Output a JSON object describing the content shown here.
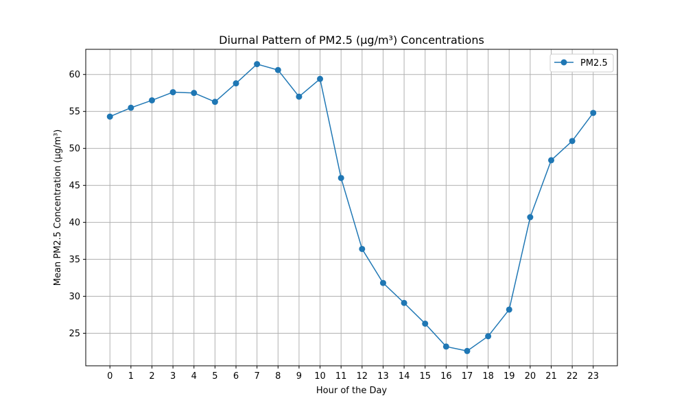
{
  "chart_data": {
    "type": "line",
    "title": "Diurnal Pattern of PM2.5 (µg/m³) Concentrations",
    "xlabel": "Hour of the Day",
    "ylabel": "Mean PM2.5 Concentration (µg/m³)",
    "x": [
      0,
      1,
      2,
      3,
      4,
      5,
      6,
      7,
      8,
      9,
      10,
      11,
      12,
      13,
      14,
      15,
      16,
      17,
      18,
      19,
      20,
      21,
      22,
      23
    ],
    "xticks": [
      "0",
      "1",
      "2",
      "3",
      "4",
      "5",
      "6",
      "7",
      "8",
      "9",
      "10",
      "11",
      "12",
      "13",
      "14",
      "15",
      "16",
      "17",
      "18",
      "19",
      "20",
      "21",
      "22",
      "23"
    ],
    "yticks": [
      25,
      30,
      35,
      40,
      45,
      50,
      55,
      60
    ],
    "xlim": [
      -1.15,
      24.15
    ],
    "ylim": [
      20.6,
      63.4
    ],
    "grid": true,
    "legend": "top-right",
    "series": [
      {
        "name": "PM2.5",
        "color": "#1f77b4",
        "marker": "circle",
        "values": [
          54.3,
          55.5,
          56.5,
          57.6,
          57.5,
          56.3,
          58.8,
          61.4,
          60.6,
          57.0,
          59.4,
          46.0,
          36.4,
          31.8,
          29.1,
          26.3,
          23.2,
          22.6,
          24.6,
          28.2,
          40.7,
          48.4,
          51.0,
          54.8
        ]
      }
    ]
  }
}
